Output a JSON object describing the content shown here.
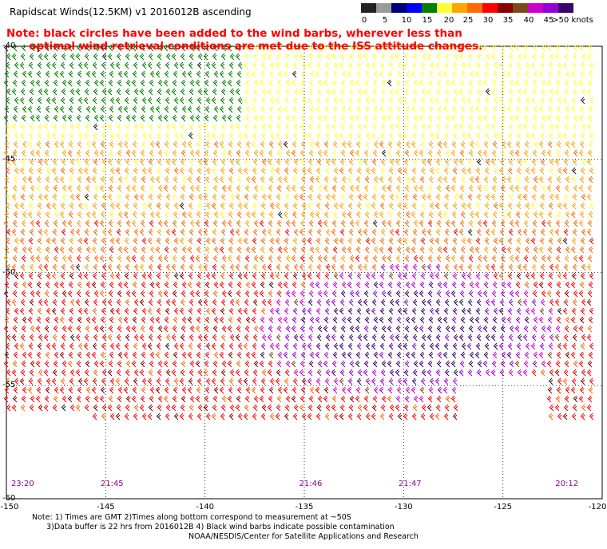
{
  "title": "Rapidscat Winds(12.5KM) v1 2016012B ascending",
  "note": {
    "line1": "Note: black circles have been added to the wind barbs, wherever less than",
    "line2": "      optimal wind retrieval conditions are met due to the ISS attitude changes."
  },
  "colorbar": {
    "colors": [
      "#222222",
      "#9a9a9a",
      "#00007a",
      "#0000ff",
      "#008000",
      "#ffff33",
      "#ffa500",
      "#ff6a00",
      "#ff0000",
      "#8b0000",
      "#7a4a1a",
      "#cc00cc",
      "#9400d3",
      "#3a006e"
    ],
    "ticks": [
      "0",
      "5",
      "10",
      "15",
      "20",
      "25",
      "30",
      "35",
      "40",
      "45",
      ">50 knots"
    ]
  },
  "axes": {
    "x_ticks": [
      "-150",
      "-145",
      "-140",
      "-135",
      "-130",
      "-125",
      "-120"
    ],
    "y_ticks": [
      "-40",
      "-45",
      "-50",
      "-55",
      "-60"
    ],
    "lon_range": [
      -150,
      -120
    ],
    "lat_range": [
      -60,
      -40
    ]
  },
  "time_labels": [
    {
      "text": "23:20",
      "lon": -149.6
    },
    {
      "text": "21:45",
      "lon": -145.1
    },
    {
      "text": "21:46",
      "lon": -135.1
    },
    {
      "text": "21:47",
      "lon": -130.1
    },
    {
      "text": "20:12",
      "lon": -122.2
    }
  ],
  "footer": {
    "line1": "Note: 1) Times are GMT 2)Times along bottom correspond to measurement at ~50S",
    "line2": "      3)Data buffer is 22 hrs from 2016012B 4) Black wind barbs indicate possible contamination",
    "credit": "NOAA/NESDIS/Center for Satellite Applications and Research"
  }
}
